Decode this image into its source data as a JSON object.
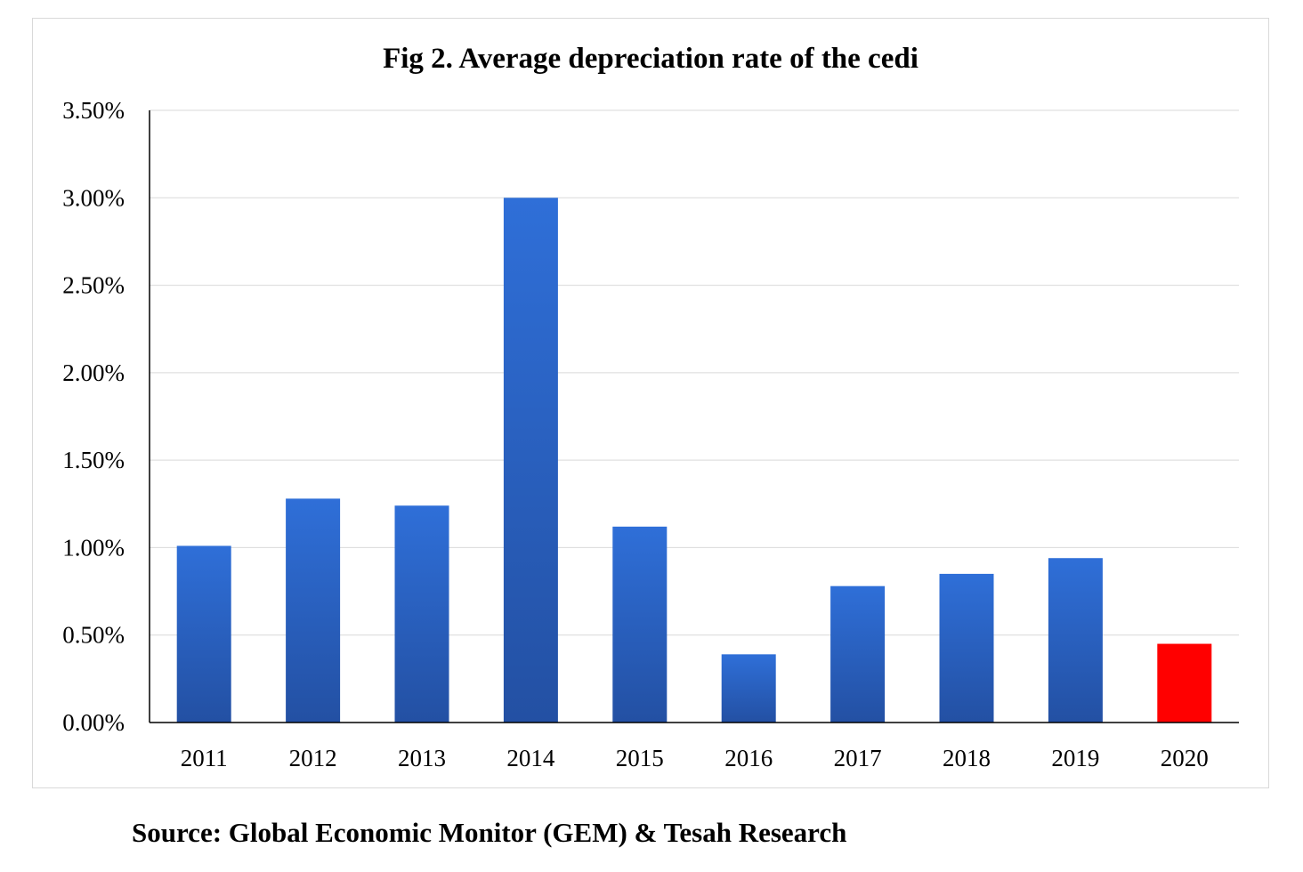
{
  "chart_data": {
    "type": "bar",
    "title": "Fig 2. Average depreciation rate of the cedi",
    "xlabel": "",
    "ylabel": "",
    "categories": [
      "2011",
      "2012",
      "2013",
      "2014",
      "2015",
      "2016",
      "2017",
      "2018",
      "2019",
      "2020"
    ],
    "values": [
      1.01,
      1.28,
      1.24,
      3.0,
      1.12,
      0.39,
      0.78,
      0.85,
      0.94,
      0.45
    ],
    "unit": "%",
    "ylim": [
      0,
      3.5
    ],
    "yticks": [
      "0.00%",
      "0.50%",
      "1.00%",
      "1.50%",
      "2.00%",
      "2.50%",
      "3.00%",
      "3.50%"
    ],
    "grid": true,
    "legend": "none",
    "colors": {
      "bar_top": "#2f6fd8",
      "bar_bottom": "#2350a3",
      "highlight": "#ff0000",
      "grid": "#d9d9d9"
    },
    "highlight_category": "2020"
  },
  "source": "Source: Global Economic Monitor (GEM) & Tesah Research"
}
